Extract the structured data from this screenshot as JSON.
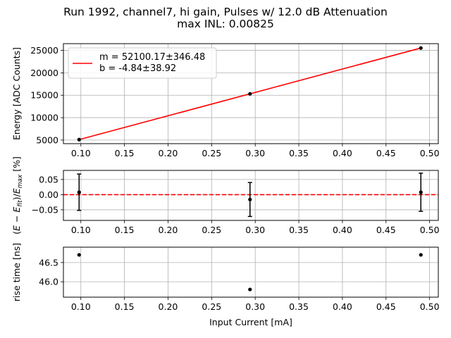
{
  "title_line1": "Run 1992, channel7, hi gain, Pulses w/ 12.0 dB Attenuation",
  "title_line2": "max INL: 0.00825",
  "colors": {
    "fit": "#ff0000",
    "points": "#000000",
    "zero_line": "#ff0000",
    "grid": "#b0b0b0"
  },
  "chart_data": [
    {
      "type": "line",
      "name": "energy-vs-current",
      "xlabel": "",
      "ylabel": "Energy [ADC Counts]",
      "xlim": [
        0.08,
        0.51
      ],
      "ylim": [
        4200,
        26500
      ],
      "xticks": [
        0.1,
        0.15,
        0.2,
        0.25,
        0.3,
        0.35,
        0.4,
        0.45,
        0.5
      ],
      "xtick_labels": [
        "0.10",
        "0.15",
        "0.20",
        "0.25",
        "0.30",
        "0.35",
        "0.40",
        "0.45",
        "0.50"
      ],
      "yticks": [
        5000,
        10000,
        15000,
        20000,
        25000
      ],
      "ytick_labels": [
        "5000",
        "10000",
        "15000",
        "20000",
        "25000"
      ],
      "grid": true,
      "legend_position": "upper-left",
      "series": [
        {
          "kind": "markers",
          "x": [
            0.098,
            0.294,
            0.49
          ],
          "y": [
            5100,
            15300,
            25530
          ]
        },
        {
          "kind": "fit-line",
          "name": "m = 52100.17±346.48\nb = -4.84±38.92",
          "label_lines": [
            "m = 52100.17±346.48",
            "b = -4.84±38.92"
          ],
          "x": [
            0.098,
            0.49
          ],
          "y": [
            5100,
            25530
          ]
        }
      ]
    },
    {
      "type": "scatter",
      "name": "residuals",
      "xlabel": "",
      "ylabel": "(E − E_fit)/E_max [%]",
      "ylabel_parts": {
        "open": "(",
        "e1": "E",
        "minus": " − ",
        "e2": "E",
        "sub2": "fit",
        "close": ")/",
        "e3": "E",
        "sub3": "max",
        "unit": " [%]"
      },
      "xlim": [
        0.08,
        0.51
      ],
      "ylim": [
        -0.085,
        0.08
      ],
      "xticks": [
        0.1,
        0.15,
        0.2,
        0.25,
        0.3,
        0.35,
        0.4,
        0.45,
        0.5
      ],
      "xtick_labels": [
        "0.10",
        "0.15",
        "0.20",
        "0.25",
        "0.30",
        "0.35",
        "0.40",
        "0.45",
        "0.50"
      ],
      "yticks": [
        -0.05,
        0.0,
        0.05
      ],
      "ytick_labels": [
        "−0.05",
        "0.00",
        "0.05"
      ],
      "grid": true,
      "zero_line": 0.0,
      "series": [
        {
          "kind": "errorbar",
          "x": [
            0.098,
            0.294,
            0.49
          ],
          "y": [
            0.008,
            -0.016,
            0.008
          ],
          "yerr": [
            0.06,
            0.056,
            0.063
          ]
        }
      ]
    },
    {
      "type": "scatter",
      "name": "rise-time",
      "xlabel": "Input Current [mA]",
      "ylabel": "rise time [ns]",
      "xlim": [
        0.08,
        0.51
      ],
      "ylim": [
        45.6,
        46.9
      ],
      "xticks": [
        0.1,
        0.15,
        0.2,
        0.25,
        0.3,
        0.35,
        0.4,
        0.45,
        0.5
      ],
      "xtick_labels": [
        "0.10",
        "0.15",
        "0.20",
        "0.25",
        "0.30",
        "0.35",
        "0.40",
        "0.45",
        "0.50"
      ],
      "yticks": [
        46.0,
        46.5
      ],
      "ytick_labels": [
        "46.0",
        "46.5"
      ],
      "grid": true,
      "series": [
        {
          "kind": "markers",
          "x": [
            0.098,
            0.294,
            0.49
          ],
          "y": [
            46.7,
            45.8,
            46.7
          ]
        }
      ]
    }
  ]
}
